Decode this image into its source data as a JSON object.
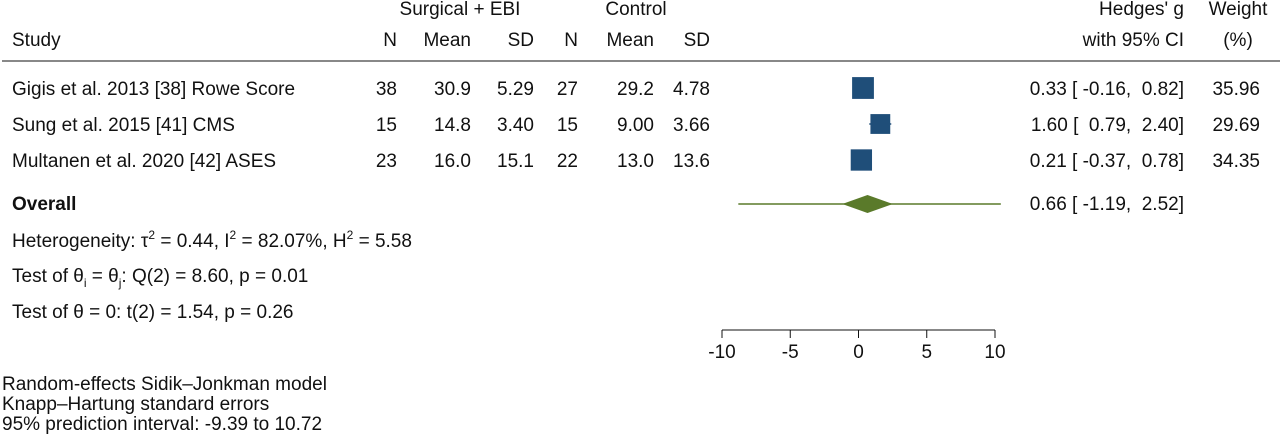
{
  "header": {
    "group1": "Surgical + EBI",
    "group2": "Control",
    "col_study": "Study",
    "col_n1": "N",
    "col_mean1": "Mean",
    "col_sd1": "SD",
    "col_n2": "N",
    "col_mean2": "Mean",
    "col_sd2": "SD",
    "col_effect_line1": "Hedges' g",
    "col_effect_line2": "with 95% CI",
    "col_weight_line1": "Weight",
    "col_weight_line2": "(%)"
  },
  "chart_data": {
    "type": "forest",
    "xlim": [
      -10,
      10
    ],
    "xticks": [
      -10,
      -5,
      0,
      5,
      10
    ],
    "studies": [
      {
        "label": "Gigis et al. 2013 [38] Rowe Score",
        "n1": "38",
        "mean1": "30.9",
        "sd1": "5.29",
        "n2": "27",
        "mean2": "29.2",
        "sd2": "4.78",
        "g": 0.33,
        "lo": -0.16,
        "hi": 0.82,
        "ci_text": "0.33 [ -0.16,  0.82]",
        "weight": 35.96,
        "weight_text": "35.96"
      },
      {
        "label": "Sung et al. 2015 [41] CMS",
        "n1": "15",
        "mean1": "14.8",
        "sd1": "3.40",
        "n2": "15",
        "mean2": "9.00",
        "sd2": "3.66",
        "g": 1.6,
        "lo": 0.79,
        "hi": 2.4,
        "ci_text": "1.60 [  0.79,  2.40]",
        "weight": 29.69,
        "weight_text": "29.69"
      },
      {
        "label": "Multanen et al. 2020 [42] ASES",
        "n1": "23",
        "mean1": "16.0",
        "sd1": "15.1",
        "n2": "22",
        "mean2": "13.0",
        "sd2": "13.6",
        "g": 0.21,
        "lo": -0.37,
        "hi": 0.78,
        "ci_text": "0.21 [ -0.37,  0.78]",
        "weight": 34.35,
        "weight_text": "34.35"
      }
    ],
    "overall": {
      "label": "Overall",
      "g": 0.66,
      "lo": -1.19,
      "hi": 2.52,
      "ci_text": "0.66 [ -1.19,  2.52]",
      "pi_lo": -9.39,
      "pi_hi": 10.72
    },
    "colors": {
      "square": "#1f4e79",
      "diamond": "#5a7a2a",
      "text": "#111111"
    }
  },
  "stats": {
    "heterogeneity": {
      "prefix": "Heterogeneity: ",
      "tau": "τ",
      "sup1": "2",
      "part1": " = 0.44, I",
      "sup2": "2",
      "part2": " = 82.07%, H",
      "sup3": "2",
      "part3": " = 5.58"
    },
    "test1": {
      "prefix": "Test of ",
      "theta_i": "θ",
      "sub_i": "i",
      "eq": " = ",
      "theta_j": "θ",
      "sub_j": "j",
      "rest": ": Q(2) = 8.60, p = 0.01"
    },
    "test2": {
      "prefix": "Test of ",
      "theta": "θ",
      "rest": " = 0: t(2) = 1.54, p = 0.26"
    }
  },
  "footnotes": {
    "line1": "Random-effects Sidik–Jonkman model",
    "line2": "Knapp–Hartung standard errors",
    "line3": "95% prediction interval: -9.39 to 10.72"
  }
}
